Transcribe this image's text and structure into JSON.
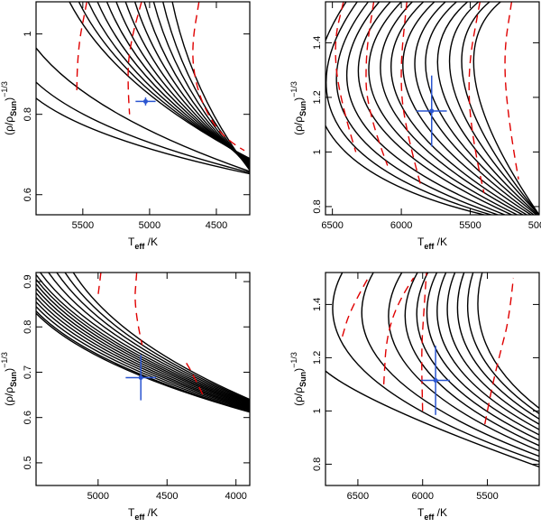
{
  "colors": {
    "tracks": "#000000",
    "isochrones": "#e00000",
    "star": "#2a55d0"
  },
  "chart_data": [
    {
      "type": "line",
      "title": "",
      "xlabel": "T_eff /K",
      "ylabel": "(ρ/ρ_Sun)^-1/3",
      "xlim": [
        5850,
        4250
      ],
      "ylim": [
        0.55,
        1.08
      ],
      "x_reversed": true,
      "xticks": [
        5500,
        5000,
        4500
      ],
      "yticks": [
        0.6,
        0.8,
        1
      ],
      "star": {
        "teff": 5030,
        "teff_err": 75,
        "y": 0.832,
        "y_err": 0.01
      },
      "tracks": {
        "y_top": [
          1.08,
          1.08,
          1.08,
          1.08,
          1.08,
          1.08,
          1.08,
          1.08,
          1.08,
          1.08,
          1.08,
          1.08,
          0.965,
          0.88,
          0.84
        ],
        "x_top": [
          5600,
          5530,
          5460,
          5390,
          5320,
          5250,
          5180,
          5110,
          5040,
          4970,
          4900,
          4830,
          5850,
          5850,
          5850
        ],
        "y_end": [
          0.69,
          0.688,
          0.686,
          0.684,
          0.682,
          0.679,
          0.676,
          0.673,
          0.67,
          0.667,
          0.664,
          0.661,
          0.658,
          0.655,
          0.652
        ],
        "x_end": 4250
      },
      "isochrones": [
        [
          [
            5470,
            1.08
          ],
          [
            5545,
            0.95
          ],
          [
            5545,
            0.85
          ]
        ],
        [
          [
            5060,
            1.08
          ],
          [
            5135,
            0.99
          ],
          [
            5170,
            0.9
          ],
          [
            5150,
            0.8
          ]
        ],
        [
          [
            4630,
            1.08
          ],
          [
            4680,
            0.98
          ],
          [
            4670,
            0.9
          ],
          [
            4600,
            0.82
          ],
          [
            4450,
            0.74
          ],
          [
            4290,
            0.71
          ]
        ]
      ]
    },
    {
      "type": "line",
      "title": "",
      "xlabel": "T_eff /K",
      "ylabel": "(ρ/ρ_Sun)^-1/3",
      "xlim": [
        6550,
        5000
      ],
      "ylim": [
        0.77,
        1.55
      ],
      "x_reversed": true,
      "xticks": [
        6500,
        6000,
        5500,
        5000
      ],
      "yticks": [
        0.8,
        1,
        1.2,
        1.4
      ],
      "star": {
        "teff": 5780,
        "teff_err": 110,
        "y": 1.15,
        "y_err": 0.13
      },
      "tracks": {
        "y_top": [
          1.55,
          1.55,
          1.55,
          1.55,
          1.55,
          1.55,
          1.55,
          1.55,
          1.55,
          1.55,
          1.55,
          1.55,
          1.55,
          1.55,
          1.55
        ],
        "x_top": [
          6400,
          6320,
          6240,
          6160,
          6080,
          6000,
          5920,
          5840,
          5760,
          5680,
          5600,
          5520,
          5440,
          5360,
          5280
        ],
        "y_mid": [
          1.07,
          1.09,
          1.11,
          1.13,
          1.15,
          1.16,
          1.17,
          1.18,
          1.19,
          1.2,
          1.21,
          1.22,
          1.23,
          1.24,
          1.25
        ],
        "x_mid": [
          6520,
          6450,
          6380,
          6310,
          6230,
          6160,
          6080,
          6010,
          5930,
          5850,
          5780,
          5700,
          5620,
          5540,
          5460
        ],
        "y_end": 0.77,
        "x_end": [
          5400,
          5350,
          5300,
          5250,
          5200,
          5160,
          5120,
          5090,
          5060,
          5040,
          5020,
          5010,
          5000,
          5000,
          5000
        ]
      },
      "isochrones": [
        [
          [
            6420,
            1.55
          ],
          [
            6490,
            1.4
          ],
          [
            6450,
            1.2
          ],
          [
            6330,
            1.0
          ]
        ],
        [
          [
            6200,
            1.55
          ],
          [
            6260,
            1.35
          ],
          [
            6250,
            1.15
          ],
          [
            6100,
            0.95
          ]
        ],
        [
          [
            5960,
            1.55
          ],
          [
            6010,
            1.3
          ],
          [
            5980,
            1.1
          ],
          [
            5860,
            0.88
          ]
        ],
        [
          [
            5430,
            1.55
          ],
          [
            5520,
            1.3
          ],
          [
            5490,
            1.05
          ],
          [
            5400,
            0.85
          ]
        ],
        [
          [
            5200,
            1.55
          ],
          [
            5260,
            1.35
          ],
          [
            5220,
            1.1
          ],
          [
            5150,
            0.9
          ]
        ]
      ]
    },
    {
      "type": "line",
      "title": "",
      "xlabel": "T_eff /K",
      "ylabel": "(ρ/ρ_Sun)^-1/3",
      "xlim": [
        5450,
        3900
      ],
      "ylim": [
        0.45,
        0.92
      ],
      "x_reversed": true,
      "xticks": [
        5000,
        4500,
        4000
      ],
      "yticks": [
        0.5,
        0.6,
        0.7,
        0.8,
        0.9
      ],
      "star": {
        "teff": 4690,
        "teff_err": 110,
        "y": 0.688,
        "y_err": 0.05
      },
      "tracks": {
        "y_top": [
          0.83,
          0.835,
          0.845,
          0.855,
          0.865,
          0.875,
          0.885,
          0.895,
          0.905,
          0.915,
          0.92,
          0.92,
          0.92,
          0.92,
          0.92
        ],
        "x_top": [
          5450,
          5450,
          5450,
          5450,
          5450,
          5450,
          5450,
          5450,
          5450,
          5450,
          5420,
          5360,
          5300,
          5240,
          5180
        ],
        "y_end": [
          0.612,
          0.614,
          0.616,
          0.618,
          0.62,
          0.622,
          0.624,
          0.626,
          0.628,
          0.63,
          0.632,
          0.634,
          0.636,
          0.638,
          0.64
        ],
        "x_end": 3900
      },
      "isochrones": [
        [
          [
            4980,
            0.92
          ],
          [
            5000,
            0.87
          ]
        ],
        [
          [
            4720,
            0.92
          ],
          [
            4740,
            0.84
          ],
          [
            4680,
            0.76
          ]
        ],
        [
          [
            4360,
            0.72
          ],
          [
            4320,
            0.7
          ],
          [
            4240,
            0.65
          ]
        ]
      ]
    },
    {
      "type": "line",
      "title": "",
      "xlabel": "T_eff /K",
      "ylabel": "(ρ/ρ_Sun)^-1/3",
      "xlim": [
        6750,
        5100
      ],
      "ylim": [
        0.72,
        1.52
      ],
      "x_reversed": true,
      "xticks": [
        6500,
        6000,
        5500
      ],
      "yticks": [
        0.8,
        1,
        1.2,
        1.4
      ],
      "star": {
        "teff": 5900,
        "teff_err": 110,
        "y": 1.115,
        "y_err": 0.13
      },
      "tracks": {
        "y_top": [
          1.27,
          1.52,
          1.52,
          1.52,
          1.52,
          1.52,
          1.52,
          1.52,
          1.52,
          1.52,
          1.52,
          1.52
        ],
        "x_top": [
          6750,
          6620,
          6380,
          6160,
          6040,
          5960,
          5890,
          5820,
          5750,
          5680,
          5610,
          5540
        ],
        "y_mid": [
          1.1,
          1.15,
          1.16,
          1.17,
          1.18,
          1.19,
          1.2,
          1.21,
          1.22,
          1.23,
          1.24,
          1.25
        ],
        "x_mid": [
          6600,
          6450,
          6280,
          6120,
          6010,
          5930,
          5860,
          5790,
          5720,
          5650,
          5580,
          5510
        ],
        "y_end": [
          0.79,
          0.81,
          0.83,
          0.85,
          0.87,
          0.89,
          0.91,
          0.93,
          0.95,
          0.97,
          0.99,
          1.01
        ],
        "x_end": 5100
      },
      "isochrones": [
        [
          [
            6620,
            1.28
          ],
          [
            6560,
            1.38
          ],
          [
            6420,
            1.5
          ]
        ],
        [
          [
            6300,
            1.1
          ],
          [
            6280,
            1.28
          ],
          [
            6180,
            1.42
          ],
          [
            6070,
            1.5
          ]
        ],
        [
          [
            6000,
            1.0
          ],
          [
            6010,
            1.22
          ],
          [
            5990,
            1.38
          ],
          [
            5970,
            1.52
          ]
        ],
        [
          [
            5520,
            0.95
          ],
          [
            5460,
            1.1
          ],
          [
            5400,
            1.22
          ],
          [
            5330,
            1.35
          ],
          [
            5300,
            1.5
          ]
        ]
      ]
    }
  ]
}
